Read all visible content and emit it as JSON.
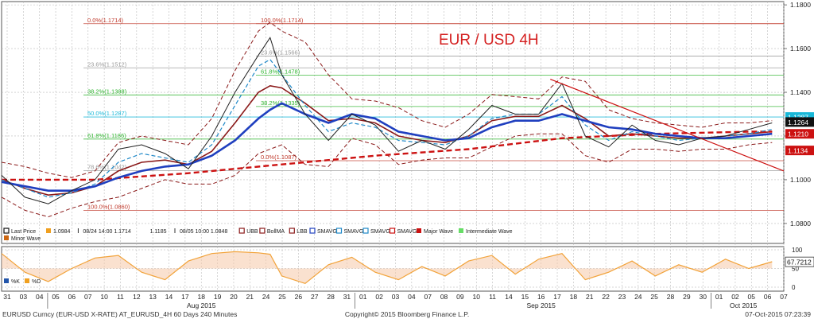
{
  "chart_data": {
    "type": "line",
    "title": "EUR / USD 4H",
    "colors": {
      "price": "#222222",
      "bollinger": "#8b1a1a",
      "sma_slow": "#1f3fbf",
      "sma_fast": "#1e88c8",
      "major_wave": "#cc1111",
      "fib_red": "#c0392b",
      "fib_green": "#2fb52f",
      "fib_cyan": "#19b8d8",
      "title": "#d42020",
      "stoch": "#f2a33a"
    },
    "y_axis": {
      "ticks": [
        "1.1800",
        "1.1600",
        "1.1400",
        "1.1200",
        "1.1000",
        "1.0800"
      ],
      "tick_values": [
        1.18,
        1.16,
        1.14,
        1.12,
        1.1,
        1.08
      ],
      "ylim": [
        1.0745,
        1.1815
      ]
    },
    "price_tags": [
      {
        "label": "1.1287",
        "value": 1.1287,
        "color": "#19b8d8"
      },
      {
        "label": "1.1264",
        "value": 1.1264,
        "color": "#111111"
      },
      {
        "label": "1.1210",
        "value": 1.121,
        "color": "#cc1111"
      },
      {
        "label": "1.1134",
        "value": 1.1134,
        "color": "#cc1111"
      }
    ],
    "fib_levels": [
      {
        "label": "0.0%(1.1714)",
        "value": 1.1714,
        "color": "#c0392b",
        "pos": "left"
      },
      {
        "label": "100.0%(1.1714)",
        "value": 1.1714,
        "color": "#c0392b",
        "pos": "mid"
      },
      {
        "label": "23.6%(1.1512)",
        "value": 1.1512,
        "color": "#999999",
        "pos": "left"
      },
      {
        "label": "23.6%(1.1566)",
        "value": 1.1566,
        "color": "#999999",
        "pos": "mid"
      },
      {
        "label": "61.8%(1.1478)",
        "value": 1.1478,
        "color": "#2fb52f",
        "pos": "mid"
      },
      {
        "label": "38.2%(1.1388)",
        "value": 1.1388,
        "color": "#2fb52f",
        "pos": "left"
      },
      {
        "label": "38.2%(1.1335)",
        "value": 1.1335,
        "color": "#2fb52f",
        "pos": "mid"
      },
      {
        "label": "50.0%(1.1287)",
        "value": 1.1287,
        "color": "#19b8d8",
        "pos": "left"
      },
      {
        "label": "61.8%(1.1186)",
        "value": 1.1186,
        "color": "#2fb52f",
        "pos": "left"
      },
      {
        "label": "78.6%(1.1042)",
        "value": 1.1042,
        "color": "#999999",
        "pos": "left"
      },
      {
        "label": "0.0%(1.1087)",
        "value": 1.1087,
        "color": "#c0392b",
        "pos": "mid"
      },
      {
        "label": "100.0%(1.0860)",
        "value": 1.086,
        "color": "#c0392b",
        "pos": "left"
      }
    ],
    "price_x": [
      0,
      2,
      4,
      6,
      8,
      10,
      12,
      14,
      16,
      18,
      20,
      22,
      23,
      24,
      26,
      28,
      30,
      32,
      34,
      36,
      38,
      40,
      42,
      44,
      46,
      48,
      50,
      52,
      54,
      56,
      58,
      60,
      62,
      64,
      66
    ],
    "price": [
      1.102,
      1.092,
      1.089,
      1.095,
      1.1,
      1.114,
      1.116,
      1.112,
      1.105,
      1.12,
      1.14,
      1.157,
      1.165,
      1.148,
      1.13,
      1.118,
      1.13,
      1.125,
      1.113,
      1.118,
      1.114,
      1.123,
      1.134,
      1.13,
      1.13,
      1.144,
      1.12,
      1.115,
      1.125,
      1.118,
      1.116,
      1.119,
      1.12,
      1.123,
      1.126
    ],
    "sma_fast": [
      1.1,
      1.096,
      1.092,
      1.094,
      1.098,
      1.108,
      1.112,
      1.11,
      1.108,
      1.116,
      1.134,
      1.152,
      1.155,
      1.148,
      1.134,
      1.122,
      1.126,
      1.124,
      1.118,
      1.117,
      1.116,
      1.12,
      1.128,
      1.13,
      1.13,
      1.138,
      1.125,
      1.118,
      1.122,
      1.12,
      1.118,
      1.119,
      1.12,
      1.121,
      1.123
    ],
    "sma_slow": [
      1.099,
      1.097,
      1.095,
      1.095,
      1.097,
      1.101,
      1.104,
      1.106,
      1.107,
      1.111,
      1.118,
      1.128,
      1.132,
      1.135,
      1.13,
      1.126,
      1.13,
      1.128,
      1.122,
      1.12,
      1.118,
      1.119,
      1.124,
      1.127,
      1.127,
      1.13,
      1.127,
      1.124,
      1.123,
      1.121,
      1.12,
      1.119,
      1.119,
      1.12,
      1.121
    ],
    "boll_mid": [
      1.1,
      1.096,
      1.093,
      1.094,
      1.097,
      1.104,
      1.108,
      1.109,
      1.107,
      1.113,
      1.126,
      1.14,
      1.143,
      1.142,
      1.135,
      1.127,
      1.128,
      1.126,
      1.12,
      1.118,
      1.117,
      1.12,
      1.127,
      1.129,
      1.129,
      1.134,
      1.128,
      1.12,
      1.121,
      1.12,
      1.119,
      1.119,
      1.12,
      1.121,
      1.122
    ],
    "boll_upper": [
      1.108,
      1.106,
      1.103,
      1.101,
      1.104,
      1.117,
      1.12,
      1.118,
      1.116,
      1.128,
      1.15,
      1.168,
      1.172,
      1.168,
      1.163,
      1.148,
      1.137,
      1.136,
      1.133,
      1.127,
      1.124,
      1.13,
      1.139,
      1.138,
      1.137,
      1.147,
      1.145,
      1.132,
      1.128,
      1.126,
      1.125,
      1.124,
      1.126,
      1.126,
      1.127
    ],
    "boll_lower": [
      1.092,
      1.086,
      1.083,
      1.087,
      1.09,
      1.092,
      1.096,
      1.1,
      1.098,
      1.098,
      1.102,
      1.112,
      1.114,
      1.116,
      1.107,
      1.106,
      1.119,
      1.116,
      1.107,
      1.109,
      1.11,
      1.11,
      1.115,
      1.12,
      1.121,
      1.121,
      1.111,
      1.108,
      1.114,
      1.114,
      1.113,
      1.114,
      1.114,
      1.116,
      1.117
    ],
    "major_wave_x": [
      0,
      8,
      16,
      24,
      32,
      40,
      48,
      56,
      64,
      66
    ],
    "major_wave": [
      1.1,
      1.1,
      1.103,
      1.107,
      1.111,
      1.114,
      1.119,
      1.121,
      1.122,
      1.122
    ],
    "trendline": {
      "from": [
        47,
        1.146
      ],
      "to": [
        67,
        1.104
      ]
    },
    "stoch_ticks": [
      "100",
      "50",
      "0"
    ],
    "stoch_value": "67.7212",
    "stoch": [
      90,
      40,
      15,
      50,
      78,
      85,
      40,
      20,
      70,
      90,
      95,
      92,
      88,
      30,
      10,
      60,
      80,
      40,
      20,
      55,
      30,
      70,
      85,
      35,
      75,
      90,
      20,
      40,
      70,
      30,
      60,
      40,
      75,
      50,
      68
    ],
    "x_days": [
      "31",
      "03",
      "04",
      "05",
      "06",
      "07",
      "10",
      "11",
      "12",
      "13",
      "14",
      "17",
      "18",
      "19",
      "20",
      "21",
      "24",
      "25",
      "26",
      "27",
      "28",
      "31",
      "01",
      "02",
      "03",
      "04",
      "07",
      "08",
      "09",
      "10",
      "11",
      "14",
      "15",
      "16",
      "17",
      "18",
      "21",
      "22",
      "23",
      "24",
      "25",
      "28",
      "29",
      "30",
      "01",
      "02",
      "05",
      "06",
      "07"
    ],
    "month_labels": [
      "Aug 2015",
      "Sep 2015",
      "Oct 2015"
    ],
    "legend": [
      {
        "label": "Last Price",
        "color": "#111111",
        "type": "line"
      },
      {
        "label": "1.0984",
        "color": "#f0a020",
        "type": "swatch"
      },
      {
        "label": "08/24 14:00 1.1714",
        "color": "#333333",
        "type": "tick"
      },
      {
        "label": "1.1185",
        "color": "#333333",
        "type": "plain"
      },
      {
        "label": "08/05 10:00 1.0848",
        "color": "#333333",
        "type": "tick"
      },
      {
        "label": "UBB",
        "color": "#8b1a1a",
        "type": "line"
      },
      {
        "label": "BollMA",
        "color": "#8b1a1a",
        "type": "line"
      },
      {
        "label": "LBB",
        "color": "#8b1a1a",
        "type": "line"
      },
      {
        "label": "SMAVG",
        "color": "#1f3fbf",
        "type": "line"
      },
      {
        "label": "SMAVG",
        "color": "#1e88c8",
        "type": "line"
      },
      {
        "label": "SMAVG",
        "color": "#1e88c8",
        "type": "dash"
      },
      {
        "label": "SMAVG",
        "color": "#cc1111",
        "type": "dash"
      },
      {
        "label": "Major Wave",
        "color": "#cc1111",
        "type": "swatch"
      },
      {
        "label": "Intermediate Wave",
        "color": "#66dd66",
        "type": "swatch"
      },
      {
        "label": "Minor Wave",
        "color": "#cc6611",
        "type": "swatch"
      }
    ],
    "stoch_legend": [
      {
        "label": "%K",
        "color": "#2255aa"
      },
      {
        "label": "%D",
        "color": "#f0a020"
      }
    ],
    "footer_left": "EURUSD Curncy (EUR-USD X-RATE) AT_EURUSD_4H 60 Days 240 Minutes",
    "footer_mid": "Copyright© 2015 Bloomberg Finance L.P.",
    "footer_right": "07-Oct-2015 07:23:39"
  }
}
